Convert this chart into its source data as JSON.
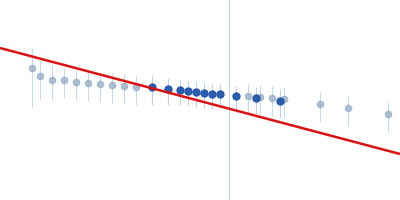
{
  "background_color": "#ffffff",
  "fig_width": 4.0,
  "fig_height": 2.0,
  "dpi": 100,
  "line_color": "#dd1111",
  "line_width": 1.8,
  "line_x": [
    0.0,
    1.0
  ],
  "line_y": [
    0.76,
    0.23
  ],
  "vline_x": 0.573,
  "vline_color": "#b8d4e8",
  "vline_lw": 0.7,
  "gray_points_x": [
    0.08,
    0.1,
    0.13,
    0.16,
    0.19,
    0.22,
    0.25,
    0.28,
    0.31,
    0.34,
    0.62,
    0.65,
    0.68,
    0.71,
    0.8,
    0.87,
    0.97
  ],
  "gray_points_y": [
    0.66,
    0.62,
    0.6,
    0.6,
    0.59,
    0.585,
    0.58,
    0.575,
    0.57,
    0.565,
    0.52,
    0.515,
    0.51,
    0.505,
    0.48,
    0.46,
    0.43
  ],
  "gray_yerr_lo": [
    0.2,
    0.12,
    0.1,
    0.09,
    0.09,
    0.09,
    0.09,
    0.09,
    0.09,
    0.09,
    0.09,
    0.09,
    0.09,
    0.09,
    0.09,
    0.09,
    0.09
  ],
  "gray_yerr_hi": [
    0.1,
    0.08,
    0.07,
    0.06,
    0.06,
    0.06,
    0.06,
    0.06,
    0.06,
    0.06,
    0.06,
    0.06,
    0.06,
    0.06,
    0.06,
    0.06,
    0.06
  ],
  "gray_color": "#9ab0c8",
  "gray_ecolor": "#b8d4ea",
  "gray_ms": 4.5,
  "gray_alpha": 0.8,
  "blue_points_x": [
    0.38,
    0.42,
    0.45,
    0.47,
    0.49,
    0.51,
    0.53,
    0.55,
    0.59,
    0.64,
    0.7
  ],
  "blue_points_y": [
    0.565,
    0.555,
    0.548,
    0.544,
    0.54,
    0.536,
    0.532,
    0.528,
    0.52,
    0.51,
    0.497
  ],
  "blue_yerr_lo": [
    0.09,
    0.08,
    0.075,
    0.075,
    0.075,
    0.075,
    0.075,
    0.075,
    0.075,
    0.08,
    0.085
  ],
  "blue_yerr_hi": [
    0.06,
    0.055,
    0.05,
    0.05,
    0.05,
    0.05,
    0.05,
    0.05,
    0.05,
    0.055,
    0.06
  ],
  "blue_color": "#2255aa",
  "blue_ecolor": "#b8d4ea",
  "blue_ms": 5.0,
  "blue_alpha": 0.95,
  "xlim": [
    0.0,
    1.0
  ],
  "ylim": [
    0.0,
    1.0
  ]
}
